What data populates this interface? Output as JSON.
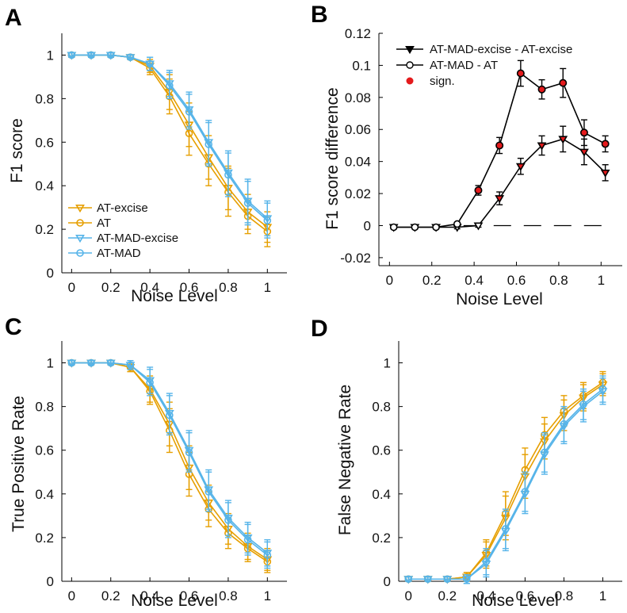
{
  "colors": {
    "orange": "#E69F00",
    "blue": "#56B4E9",
    "black": "#000000",
    "red": "#E41A1C"
  },
  "panels": {
    "A": {
      "letter": "A"
    },
    "B": {
      "letter": "B"
    },
    "C": {
      "letter": "C"
    },
    "D": {
      "letter": "D"
    }
  },
  "chart_data": [
    {
      "panel": "A",
      "type": "line",
      "xlabel": "Noise Level",
      "ylabel": "F1 score",
      "xlim": [
        -0.05,
        1.1
      ],
      "ylim": [
        0,
        1.1
      ],
      "xticks": [
        0,
        0.2,
        0.4,
        0.6,
        0.8,
        1
      ],
      "xtick_labels": [
        "0",
        "0.2",
        "0.4",
        "0.6",
        "0.8",
        "1"
      ],
      "yticks": [
        0,
        0.2,
        0.4,
        0.6,
        0.8,
        1
      ],
      "ytick_labels": [
        "0",
        "0.2",
        "0.4",
        "0.6",
        "0.8",
        "1"
      ],
      "x": [
        0,
        0.1,
        0.2,
        0.3,
        0.4,
        0.5,
        0.6,
        0.7,
        0.8,
        0.9,
        1.0
      ],
      "legend_position": "bottom-left",
      "series": [
        {
          "name": "AT-excise",
          "color": "orange",
          "marker": "triangle-down",
          "x": [
            0,
            0.1,
            0.2,
            0.3,
            0.4,
            0.5,
            0.6,
            0.7,
            0.8,
            0.9,
            1.0
          ],
          "values": [
            1.0,
            1.0,
            1.0,
            0.99,
            0.95,
            0.83,
            0.68,
            0.53,
            0.39,
            0.28,
            0.21
          ],
          "err": [
            0.01,
            0.01,
            0.01,
            0.01,
            0.03,
            0.08,
            0.1,
            0.1,
            0.1,
            0.08,
            0.07
          ]
        },
        {
          "name": "AT",
          "color": "orange",
          "marker": "circle",
          "x": [
            0,
            0.1,
            0.2,
            0.3,
            0.4,
            0.5,
            0.6,
            0.7,
            0.8,
            0.9,
            1.0
          ],
          "values": [
            1.0,
            1.0,
            1.0,
            0.99,
            0.94,
            0.81,
            0.64,
            0.5,
            0.37,
            0.26,
            0.19
          ],
          "err": [
            0.01,
            0.01,
            0.01,
            0.01,
            0.03,
            0.08,
            0.1,
            0.1,
            0.11,
            0.08,
            0.07
          ]
        },
        {
          "name": "AT-MAD-excise",
          "color": "blue",
          "marker": "triangle-down",
          "x": [
            0,
            0.1,
            0.2,
            0.3,
            0.4,
            0.5,
            0.6,
            0.7,
            0.8,
            0.9,
            1.0
          ],
          "values": [
            1.0,
            1.0,
            1.0,
            0.99,
            0.96,
            0.87,
            0.75,
            0.6,
            0.46,
            0.33,
            0.25
          ],
          "err": [
            0.01,
            0.01,
            0.01,
            0.01,
            0.03,
            0.06,
            0.08,
            0.1,
            0.1,
            0.1,
            0.08
          ]
        },
        {
          "name": "AT-MAD",
          "color": "blue",
          "marker": "circle",
          "x": [
            0,
            0.1,
            0.2,
            0.3,
            0.4,
            0.5,
            0.6,
            0.7,
            0.8,
            0.9,
            1.0
          ],
          "values": [
            1.0,
            1.0,
            1.0,
            0.99,
            0.96,
            0.86,
            0.74,
            0.59,
            0.45,
            0.32,
            0.24
          ],
          "err": [
            0.01,
            0.01,
            0.01,
            0.01,
            0.03,
            0.06,
            0.08,
            0.1,
            0.1,
            0.1,
            0.08
          ]
        }
      ]
    },
    {
      "panel": "B",
      "type": "line",
      "xlabel": "Noise Level",
      "ylabel": "F1 score difference",
      "xlim": [
        -0.05,
        1.1
      ],
      "ylim": [
        -0.025,
        0.12
      ],
      "xticks": [
        0,
        0.2,
        0.4,
        0.6,
        0.8,
        1
      ],
      "xtick_labels": [
        "0",
        "0.2",
        "0.4",
        "0.6",
        "0.8",
        "1"
      ],
      "yticks": [
        -0.02,
        0,
        0.02,
        0.04,
        0.06,
        0.08,
        0.1,
        0.12
      ],
      "ytick_labels": [
        "-0.02",
        "0",
        "0.02",
        "0.04",
        "0.06",
        "0.08",
        "0.1",
        "0.12"
      ],
      "zero_line": {
        "y": 0,
        "style": "dashed",
        "x_from": 0.35,
        "x_to": 1.05
      },
      "legend_position": "top-left",
      "series": [
        {
          "name": "AT-MAD-excise - AT-excise",
          "color": "black",
          "marker": "triangle-down",
          "x": [
            0.02,
            0.12,
            0.22,
            0.32,
            0.42,
            0.52,
            0.62,
            0.72,
            0.82,
            0.92,
            1.02
          ],
          "values": [
            -0.001,
            -0.001,
            -0.001,
            -0.001,
            0.0,
            0.017,
            0.037,
            0.05,
            0.054,
            0.046,
            0.033
          ],
          "err": [
            0.001,
            0.001,
            0.001,
            0.001,
            0.001,
            0.004,
            0.005,
            0.006,
            0.008,
            0.008,
            0.005
          ],
          "significant": [
            false,
            false,
            false,
            false,
            false,
            true,
            true,
            true,
            true,
            true,
            true
          ]
        },
        {
          "name": "AT-MAD - AT",
          "color": "black",
          "marker": "circle",
          "x": [
            0.02,
            0.12,
            0.22,
            0.32,
            0.42,
            0.52,
            0.62,
            0.72,
            0.82,
            0.92,
            1.02
          ],
          "values": [
            -0.001,
            -0.001,
            -0.001,
            0.001,
            0.022,
            0.05,
            0.095,
            0.085,
            0.089,
            0.058,
            0.051
          ],
          "err": [
            0.001,
            0.001,
            0.001,
            0.001,
            0.003,
            0.005,
            0.008,
            0.006,
            0.009,
            0.008,
            0.005
          ],
          "significant": [
            false,
            false,
            false,
            false,
            true,
            true,
            true,
            true,
            true,
            true,
            true
          ]
        }
      ],
      "extra_legend": {
        "name": "sign.",
        "color": "red",
        "marker": "filled-circle"
      }
    },
    {
      "panel": "C",
      "type": "line",
      "xlabel": "Noise Level",
      "ylabel": "True Positive Rate",
      "xlim": [
        -0.05,
        1.1
      ],
      "ylim": [
        0,
        1.1
      ],
      "xticks": [
        0,
        0.2,
        0.4,
        0.6,
        0.8,
        1
      ],
      "xtick_labels": [
        "0",
        "0.2",
        "0.4",
        "0.6",
        "0.8",
        "1"
      ],
      "yticks": [
        0,
        0.2,
        0.4,
        0.6,
        0.8,
        1
      ],
      "ytick_labels": [
        "0",
        "0.2",
        "0.4",
        "0.6",
        "0.8",
        "1"
      ],
      "series": [
        {
          "name": "AT-excise",
          "color": "orange",
          "marker": "triangle-down",
          "x": [
            0,
            0.1,
            0.2,
            0.3,
            0.4,
            0.5,
            0.6,
            0.7,
            0.8,
            0.9,
            1.0
          ],
          "values": [
            1.0,
            1.0,
            1.0,
            0.98,
            0.88,
            0.72,
            0.52,
            0.36,
            0.24,
            0.16,
            0.1
          ],
          "err": [
            0.01,
            0.01,
            0.01,
            0.02,
            0.06,
            0.1,
            0.1,
            0.08,
            0.07,
            0.06,
            0.05
          ]
        },
        {
          "name": "AT",
          "color": "orange",
          "marker": "circle",
          "x": [
            0,
            0.1,
            0.2,
            0.3,
            0.4,
            0.5,
            0.6,
            0.7,
            0.8,
            0.9,
            1.0
          ],
          "values": [
            1.0,
            1.0,
            1.0,
            0.98,
            0.87,
            0.69,
            0.49,
            0.33,
            0.22,
            0.15,
            0.09
          ],
          "err": [
            0.01,
            0.01,
            0.01,
            0.02,
            0.06,
            0.1,
            0.1,
            0.08,
            0.07,
            0.06,
            0.05
          ]
        },
        {
          "name": "AT-MAD-excise",
          "color": "blue",
          "marker": "triangle-down",
          "x": [
            0,
            0.1,
            0.2,
            0.3,
            0.4,
            0.5,
            0.6,
            0.7,
            0.8,
            0.9,
            1.0
          ],
          "values": [
            1.0,
            1.0,
            1.0,
            0.99,
            0.92,
            0.77,
            0.6,
            0.42,
            0.29,
            0.2,
            0.13
          ],
          "err": [
            0.01,
            0.01,
            0.01,
            0.02,
            0.06,
            0.09,
            0.09,
            0.09,
            0.08,
            0.07,
            0.06
          ]
        },
        {
          "name": "AT-MAD",
          "color": "blue",
          "marker": "circle",
          "x": [
            0,
            0.1,
            0.2,
            0.3,
            0.4,
            0.5,
            0.6,
            0.7,
            0.8,
            0.9,
            1.0
          ],
          "values": [
            1.0,
            1.0,
            1.0,
            0.99,
            0.91,
            0.76,
            0.59,
            0.41,
            0.28,
            0.19,
            0.12
          ],
          "err": [
            0.01,
            0.01,
            0.01,
            0.02,
            0.06,
            0.09,
            0.09,
            0.09,
            0.08,
            0.07,
            0.06
          ]
        }
      ]
    },
    {
      "panel": "D",
      "type": "line",
      "xlabel": "Noise Level",
      "ylabel": "False Negative Rate",
      "xlim": [
        -0.05,
        1.1
      ],
      "ylim": [
        0,
        1.1
      ],
      "xticks": [
        0,
        0.2,
        0.4,
        0.6,
        0.8,
        1
      ],
      "xtick_labels": [
        "0",
        "0.2",
        "0.4",
        "0.6",
        "0.8",
        "1"
      ],
      "yticks": [
        0,
        0.2,
        0.4,
        0.6,
        0.8,
        1
      ],
      "ytick_labels": [
        "0",
        "0.2",
        "0.4",
        "0.6",
        "0.8",
        "1"
      ],
      "series": [
        {
          "name": "AT-excise",
          "color": "orange",
          "marker": "triangle-down",
          "x": [
            0,
            0.1,
            0.2,
            0.3,
            0.4,
            0.5,
            0.6,
            0.7,
            0.8,
            0.9,
            1.0
          ],
          "values": [
            0.01,
            0.01,
            0.01,
            0.02,
            0.12,
            0.29,
            0.48,
            0.64,
            0.76,
            0.84,
            0.9
          ],
          "err": [
            0.01,
            0.01,
            0.01,
            0.02,
            0.06,
            0.1,
            0.1,
            0.08,
            0.07,
            0.06,
            0.05
          ]
        },
        {
          "name": "AT",
          "color": "orange",
          "marker": "circle",
          "x": [
            0,
            0.1,
            0.2,
            0.3,
            0.4,
            0.5,
            0.6,
            0.7,
            0.8,
            0.9,
            1.0
          ],
          "values": [
            0.01,
            0.01,
            0.01,
            0.02,
            0.13,
            0.31,
            0.51,
            0.67,
            0.78,
            0.85,
            0.91
          ],
          "err": [
            0.01,
            0.01,
            0.01,
            0.02,
            0.06,
            0.1,
            0.1,
            0.08,
            0.07,
            0.06,
            0.05
          ]
        },
        {
          "name": "AT-MAD-excise",
          "color": "blue",
          "marker": "triangle-down",
          "x": [
            0,
            0.1,
            0.2,
            0.3,
            0.4,
            0.5,
            0.6,
            0.7,
            0.8,
            0.9,
            1.0
          ],
          "values": [
            0.01,
            0.01,
            0.01,
            0.01,
            0.08,
            0.23,
            0.4,
            0.58,
            0.71,
            0.8,
            0.87
          ],
          "err": [
            0.01,
            0.01,
            0.01,
            0.02,
            0.06,
            0.09,
            0.09,
            0.09,
            0.08,
            0.07,
            0.06
          ]
        },
        {
          "name": "AT-MAD",
          "color": "blue",
          "marker": "circle",
          "x": [
            0,
            0.1,
            0.2,
            0.3,
            0.4,
            0.5,
            0.6,
            0.7,
            0.8,
            0.9,
            1.0
          ],
          "values": [
            0.01,
            0.01,
            0.01,
            0.01,
            0.09,
            0.24,
            0.41,
            0.59,
            0.72,
            0.81,
            0.88
          ],
          "err": [
            0.01,
            0.01,
            0.01,
            0.02,
            0.06,
            0.09,
            0.09,
            0.09,
            0.08,
            0.07,
            0.06
          ]
        }
      ]
    }
  ]
}
